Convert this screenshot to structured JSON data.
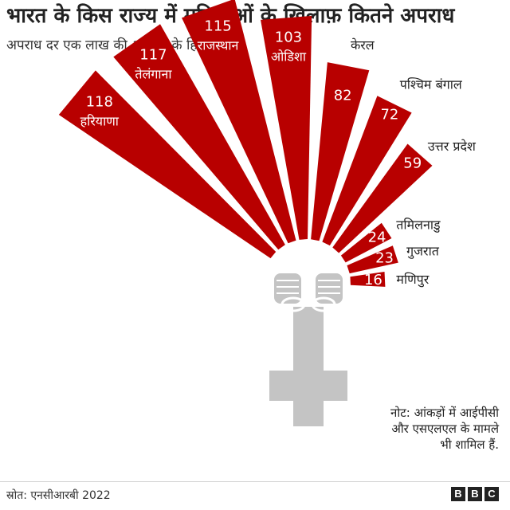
{
  "title": "भारत के किस राज्य में महिलाओं के ख़िलाफ़ कितने अपराध",
  "subtitle": "अपराध दर एक लाख की आबादी के हिसाब से",
  "note": "नोट: आंकड़ों में आईपीसी और एसएलएल के मामले भी शामिल हैं.",
  "source": "स्रोत: एनसीआरबी 2022",
  "logo": [
    "B",
    "B",
    "C"
  ],
  "colors": {
    "bar": "#b80000",
    "icon": "#c4c4c4",
    "text_on_bar": "#ffffff"
  },
  "chart_data": {
    "type": "bar",
    "layout": "radial",
    "categories": [
      "हरियाणा",
      "तेलंगाना",
      "राजस्थान",
      "ओडिशा",
      "केरल",
      "पश्चिम बंगाल",
      "उत्तर प्रदेश",
      "तमिलनाडु",
      "गुजरात",
      "मणिपुर"
    ],
    "values": [
      118,
      117,
      115,
      103,
      82,
      72,
      59,
      24,
      23,
      16
    ]
  }
}
